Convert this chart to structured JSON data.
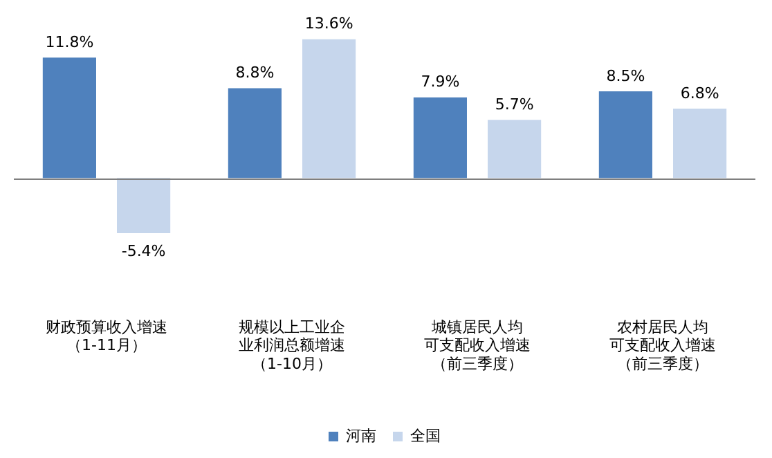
{
  "chart_data": {
    "type": "bar",
    "categories": [
      "财政预算收入增速（1-11月）",
      "规模以上工业企业利润总额增速（1-10月）",
      "城镇居民人均可支配收入增速（前三季度）",
      "农村居民人均可支配收入增速（前三季度）"
    ],
    "series": [
      {
        "name": "河南",
        "color": "#4f81bd",
        "values": [
          11.8,
          8.8,
          7.9,
          8.5
        ],
        "value_labels": [
          "11.8%",
          "8.8%",
          "7.9%",
          "8.5%"
        ]
      },
      {
        "name": "全国",
        "color": "#c6d6ec",
        "values": [
          -5.4,
          13.6,
          5.7,
          6.8
        ],
        "value_labels": [
          "-5.4%",
          "13.6%",
          "5.7%",
          "6.8%"
        ]
      }
    ],
    "grid": false,
    "legend": "bottom",
    "tick_labels": "x"
  }
}
